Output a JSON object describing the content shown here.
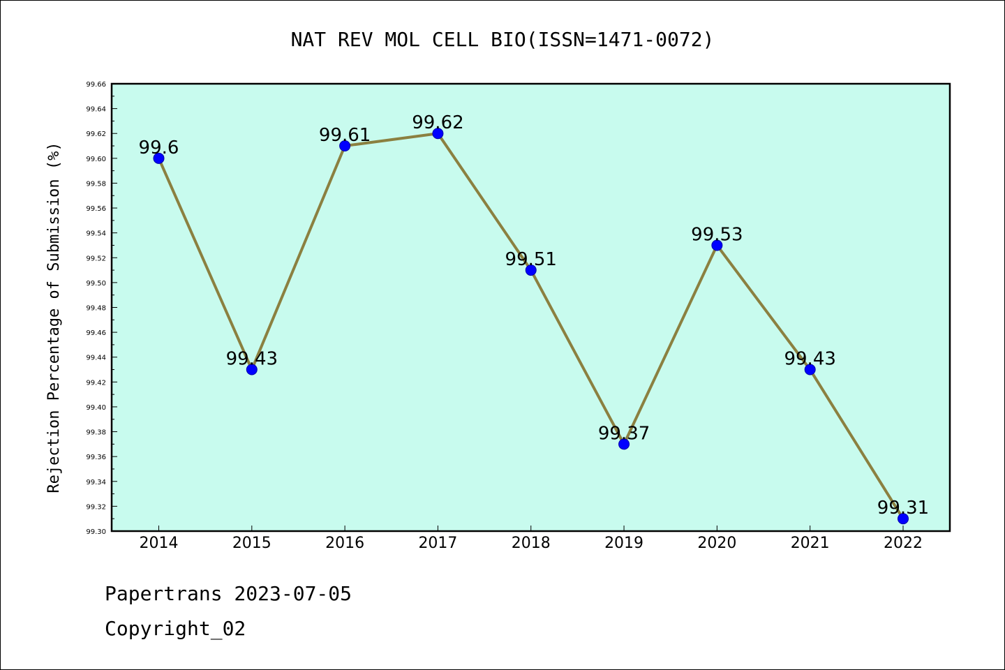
{
  "chart_data": {
    "type": "line",
    "title": "NAT REV MOL CELL BIO(ISSN=1471-0072)",
    "xlabel": "",
    "ylabel": "Rejection Percentage of Submission (%)",
    "categories": [
      "2014",
      "2015",
      "2016",
      "2017",
      "2018",
      "2019",
      "2020",
      "2021",
      "2022"
    ],
    "values": [
      99.6,
      99.43,
      99.61,
      99.62,
      99.51,
      99.37,
      99.53,
      99.43,
      99.31
    ],
    "data_labels": [
      "99.6",
      "99.43",
      "99.61",
      "99.62",
      "99.51",
      "99.37",
      "99.53",
      "99.43",
      "99.31"
    ],
    "ylim": [
      99.3,
      99.66
    ],
    "yticks": [
      "99.30",
      "99.32",
      "99.34",
      "99.36",
      "99.38",
      "99.40",
      "99.42",
      "99.44",
      "99.46",
      "99.48",
      "99.50",
      "99.52",
      "99.54",
      "99.56",
      "99.58",
      "99.60",
      "99.62",
      "99.64",
      "99.66"
    ],
    "grid": false,
    "colors": {
      "plot_background": "#c8fbee",
      "line": "#8b8040",
      "marker": "#0000ff"
    }
  },
  "footer": {
    "line1": "Papertrans 2023-07-05",
    "line2": "Copyright_02"
  }
}
